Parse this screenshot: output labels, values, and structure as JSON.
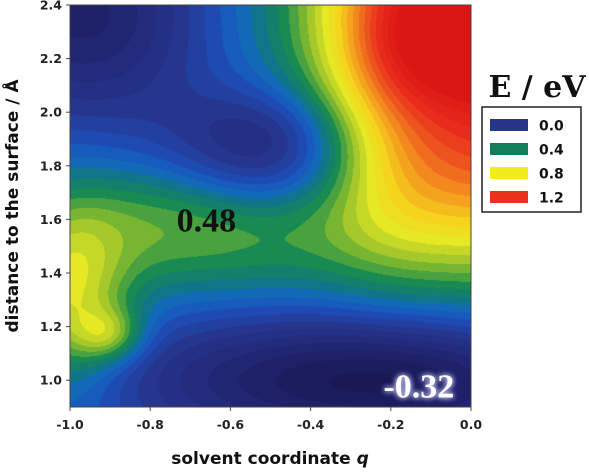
{
  "chart_data": {
    "type": "heatmap",
    "title": "",
    "xlabel": "solvent coordinate",
    "xlabel_var": "q",
    "ylabel": "distance to the surface / Å",
    "xlim": [
      -1.0,
      0.0
    ],
    "ylim": [
      0.9,
      2.4
    ],
    "x_ticks": [
      "-1.0",
      "-0.8",
      "-0.6",
      "-0.4",
      "-0.2",
      "0.0"
    ],
    "y_ticks": [
      "1.0",
      "1.2",
      "1.4",
      "1.6",
      "1.8",
      "2.0",
      "2.2",
      "2.4"
    ],
    "colorbar": {
      "title": "E / eV",
      "position": "right",
      "entries": [
        {
          "label": "0.0",
          "color": "#26348a"
        },
        {
          "label": "0.4",
          "color": "#0f7f5a"
        },
        {
          "label": "0.8",
          "color": "#f2ec1c"
        },
        {
          "label": "1.2",
          "color": "#e8321c"
        }
      ]
    },
    "energy_range": [
      -0.32,
      1.4
    ],
    "annotations": [
      {
        "text": "0.48",
        "x": -0.66,
        "y": 1.6,
        "color": "#111111"
      },
      {
        "text": "-0.32",
        "x": -0.13,
        "y": 0.98,
        "color": "#ffffff"
      }
    ]
  }
}
